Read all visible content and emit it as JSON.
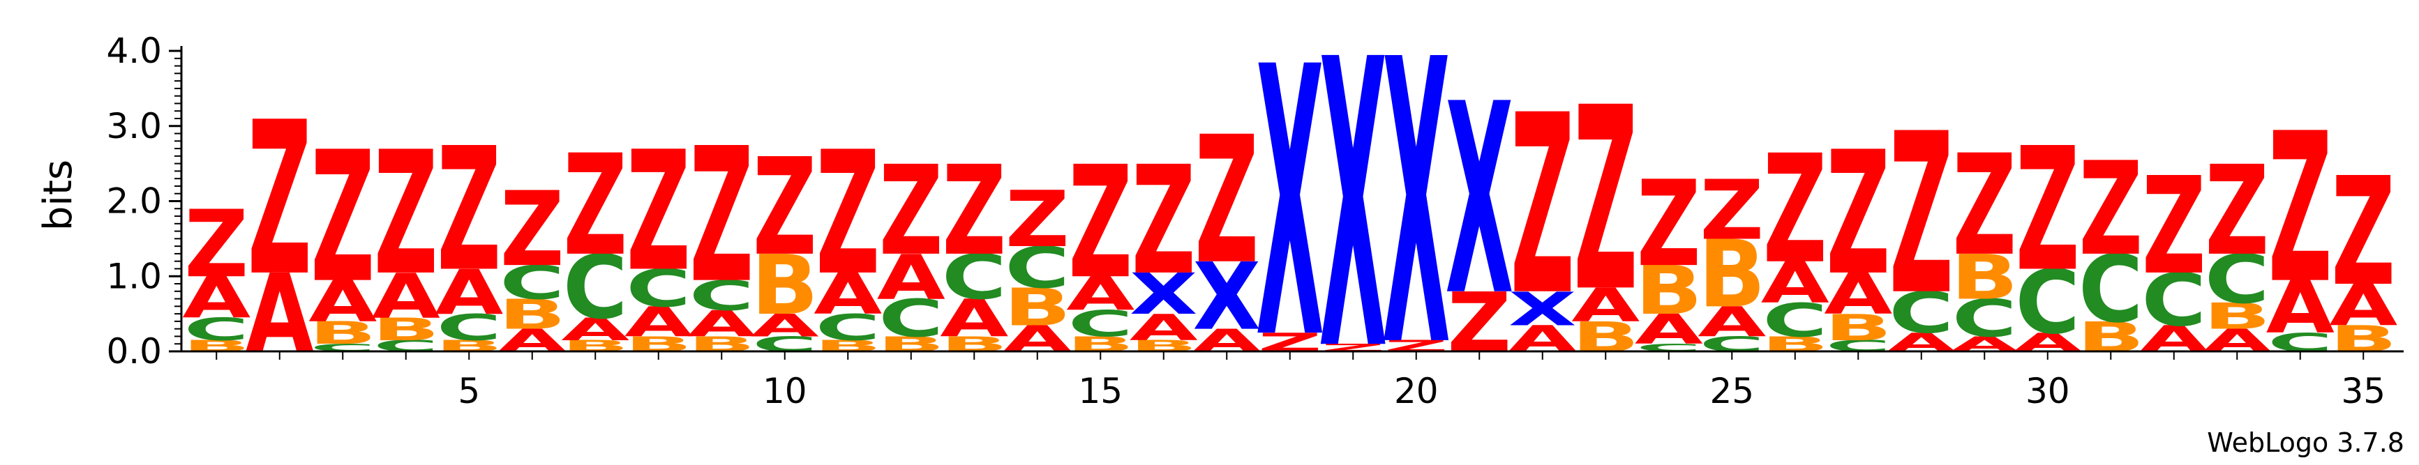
{
  "chart_data": {
    "type": "sequence-logo",
    "ylabel": "bits",
    "ylim": [
      0,
      4.0
    ],
    "y_ticks": [
      "0.0",
      "1.0",
      "2.0",
      "3.0",
      "4.0"
    ],
    "x_ticks": [
      "5",
      "10",
      "15",
      "20",
      "25",
      "30",
      "35"
    ],
    "x_tick_values": [
      5,
      10,
      15,
      20,
      25,
      30,
      35
    ],
    "positions": 35,
    "colors": {
      "Z": "#ff0000",
      "X": "#0000ff",
      "A": "#ff0000",
      "B": "#ff8c00",
      "C": "#228b22"
    },
    "stacks": [
      {
        "pos": 1,
        "letters": [
          [
            "B",
            0.15
          ],
          [
            "C",
            0.3
          ],
          [
            "A",
            0.55
          ],
          [
            "Z",
            0.9
          ]
        ]
      },
      {
        "pos": 2,
        "letters": [
          [
            "A",
            1.05
          ],
          [
            "Z",
            2.05
          ]
        ]
      },
      {
        "pos": 3,
        "letters": [
          [
            "C",
            0.1
          ],
          [
            "B",
            0.3
          ],
          [
            "A",
            0.55
          ],
          [
            "Z",
            1.75
          ]
        ]
      },
      {
        "pos": 4,
        "letters": [
          [
            "C",
            0.15
          ],
          [
            "B",
            0.3
          ],
          [
            "A",
            0.6
          ],
          [
            "Z",
            1.65
          ]
        ]
      },
      {
        "pos": 5,
        "letters": [
          [
            "B",
            0.15
          ],
          [
            "C",
            0.35
          ],
          [
            "A",
            0.6
          ],
          [
            "Z",
            1.65
          ]
        ]
      },
      {
        "pos": 6,
        "letters": [
          [
            "A",
            0.3
          ],
          [
            "B",
            0.4
          ],
          [
            "C",
            0.45
          ],
          [
            "Z",
            1.0
          ]
        ]
      },
      {
        "pos": 7,
        "letters": [
          [
            "B",
            0.15
          ],
          [
            "A",
            0.3
          ],
          [
            "C",
            0.85
          ],
          [
            "Z",
            1.35
          ]
        ]
      },
      {
        "pos": 8,
        "letters": [
          [
            "B",
            0.2
          ],
          [
            "A",
            0.4
          ],
          [
            "C",
            0.5
          ],
          [
            "Z",
            1.6
          ]
        ]
      },
      {
        "pos": 9,
        "letters": [
          [
            "B",
            0.2
          ],
          [
            "A",
            0.35
          ],
          [
            "C",
            0.4
          ],
          [
            "Z",
            1.8
          ]
        ]
      },
      {
        "pos": 10,
        "letters": [
          [
            "C",
            0.2
          ],
          [
            "A",
            0.3
          ],
          [
            "B",
            0.8
          ],
          [
            "Z",
            1.3
          ]
        ]
      },
      {
        "pos": 11,
        "letters": [
          [
            "B",
            0.15
          ],
          [
            "C",
            0.35
          ],
          [
            "A",
            0.55
          ],
          [
            "Z",
            1.65
          ]
        ]
      },
      {
        "pos": 12,
        "letters": [
          [
            "B",
            0.2
          ],
          [
            "C",
            0.5
          ],
          [
            "A",
            0.6
          ],
          [
            "Z",
            1.2
          ]
        ]
      },
      {
        "pos": 13,
        "letters": [
          [
            "B",
            0.2
          ],
          [
            "A",
            0.5
          ],
          [
            "C",
            0.6
          ],
          [
            "Z",
            1.2
          ]
        ]
      },
      {
        "pos": 14,
        "letters": [
          [
            "A",
            0.35
          ],
          [
            "B",
            0.5
          ],
          [
            "C",
            0.55
          ],
          [
            "Z",
            0.75
          ]
        ]
      },
      {
        "pos": 15,
        "letters": [
          [
            "B",
            0.2
          ],
          [
            "C",
            0.35
          ],
          [
            "A",
            0.45
          ],
          [
            "Z",
            1.5
          ]
        ]
      },
      {
        "pos": 16,
        "letters": [
          [
            "B",
            0.15
          ],
          [
            "A",
            0.35
          ],
          [
            "X",
            0.55
          ],
          [
            "Z",
            1.45
          ]
        ]
      },
      {
        "pos": 17,
        "letters": [
          [
            "A",
            0.3
          ],
          [
            "X",
            0.9
          ],
          [
            "Z",
            1.7
          ]
        ]
      },
      {
        "pos": 18,
        "letters": [
          [
            "Z",
            0.25
          ],
          [
            "X",
            3.6
          ]
        ]
      },
      {
        "pos": 19,
        "letters": [
          [
            "Z",
            0.1
          ],
          [
            "X",
            3.85
          ]
        ]
      },
      {
        "pos": 20,
        "letters": [
          [
            "Z",
            0.15
          ],
          [
            "X",
            3.8
          ]
        ]
      },
      {
        "pos": 21,
        "letters": [
          [
            "Z",
            0.8
          ],
          [
            "X",
            2.55
          ]
        ]
      },
      {
        "pos": 22,
        "letters": [
          [
            "A",
            0.35
          ],
          [
            "X",
            0.45
          ],
          [
            "Z",
            2.4
          ]
        ]
      },
      {
        "pos": 23,
        "letters": [
          [
            "B",
            0.4
          ],
          [
            "A",
            0.45
          ],
          [
            "Z",
            2.45
          ]
        ]
      },
      {
        "pos": 24,
        "letters": [
          [
            "C",
            0.1
          ],
          [
            "A",
            0.4
          ],
          [
            "B",
            0.65
          ],
          [
            "Z",
            1.15
          ]
        ]
      },
      {
        "pos": 25,
        "letters": [
          [
            "C",
            0.2
          ],
          [
            "A",
            0.4
          ],
          [
            "B",
            0.9
          ],
          [
            "Z",
            0.8
          ]
        ]
      },
      {
        "pos": 26,
        "letters": [
          [
            "B",
            0.2
          ],
          [
            "C",
            0.45
          ],
          [
            "A",
            0.55
          ],
          [
            "Z",
            1.45
          ]
        ]
      },
      {
        "pos": 27,
        "letters": [
          [
            "C",
            0.15
          ],
          [
            "B",
            0.35
          ],
          [
            "A",
            0.55
          ],
          [
            "Z",
            1.65
          ]
        ]
      },
      {
        "pos": 28,
        "letters": [
          [
            "A",
            0.25
          ],
          [
            "C",
            0.55
          ],
          [
            "Z",
            2.15
          ]
        ]
      },
      {
        "pos": 29,
        "letters": [
          [
            "A",
            0.2
          ],
          [
            "C",
            0.5
          ],
          [
            "B",
            0.6
          ],
          [
            "Z",
            1.35
          ]
        ]
      },
      {
        "pos": 30,
        "letters": [
          [
            "A",
            0.25
          ],
          [
            "C",
            0.85
          ],
          [
            "Z",
            1.65
          ]
        ]
      },
      {
        "pos": 31,
        "letters": [
          [
            "B",
            0.4
          ],
          [
            "C",
            0.9
          ],
          [
            "Z",
            1.25
          ]
        ]
      },
      {
        "pos": 32,
        "letters": [
          [
            "A",
            0.35
          ],
          [
            "C",
            0.7
          ],
          [
            "Z",
            1.3
          ]
        ]
      },
      {
        "pos": 33,
        "letters": [
          [
            "A",
            0.3
          ],
          [
            "B",
            0.35
          ],
          [
            "C",
            0.65
          ],
          [
            "Z",
            1.2
          ]
        ]
      },
      {
        "pos": 34,
        "letters": [
          [
            "C",
            0.25
          ],
          [
            "A",
            0.7
          ],
          [
            "Z",
            2.0
          ]
        ]
      },
      {
        "pos": 35,
        "letters": [
          [
            "B",
            0.35
          ],
          [
            "A",
            0.55
          ],
          [
            "Z",
            1.45
          ]
        ]
      }
    ]
  },
  "credit": "WebLogo 3.7.8"
}
